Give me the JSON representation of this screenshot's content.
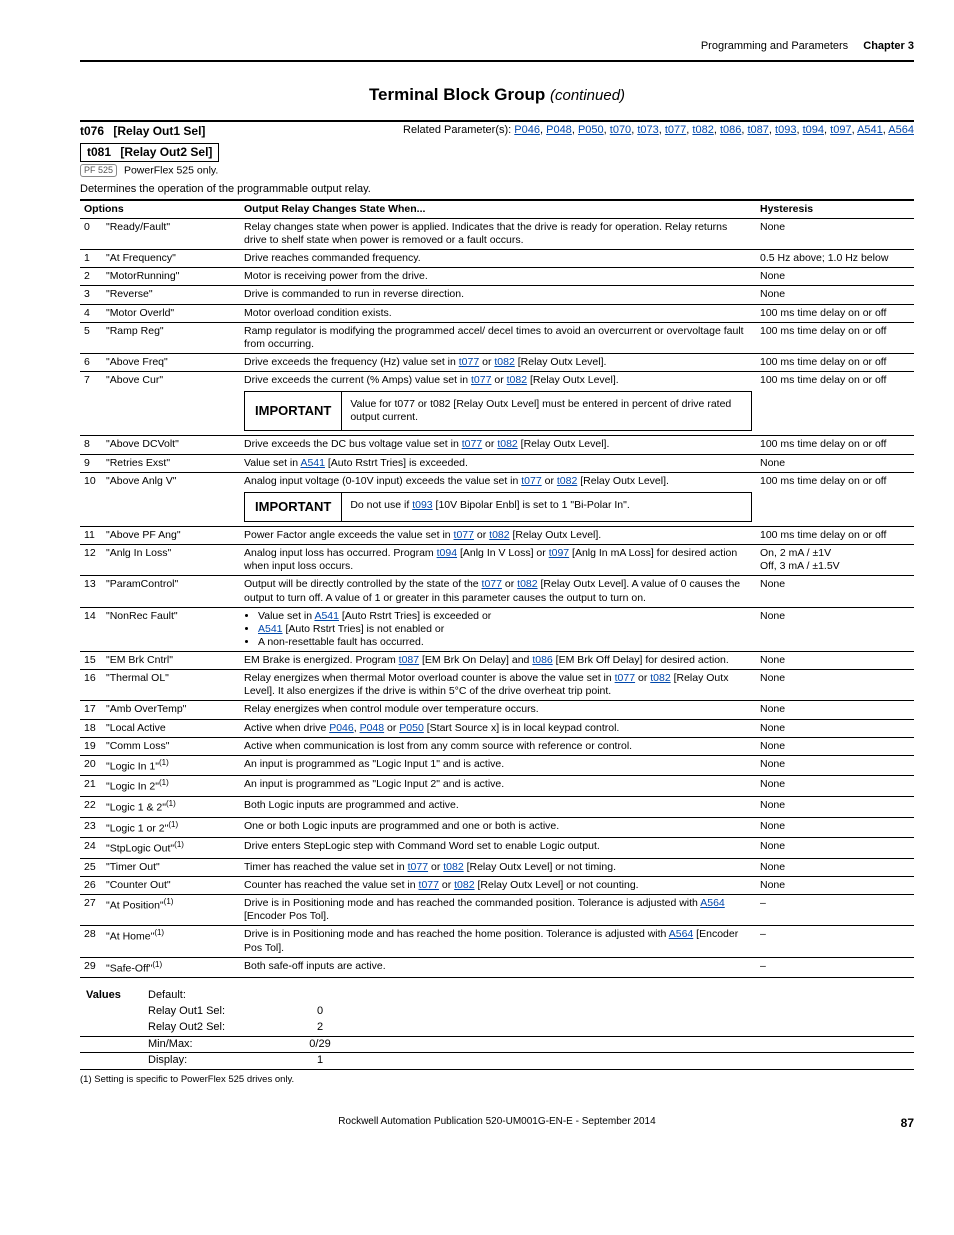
{
  "header": {
    "section": "Programming and Parameters",
    "chapter": "Chapter 3"
  },
  "title": {
    "main": "Terminal Block Group",
    "cont": "(continued)"
  },
  "params": {
    "p1": {
      "num": "t076",
      "name": "[Relay Out1 Sel]"
    },
    "p2": {
      "num": "t081",
      "name": "[Relay Out2 Sel]"
    },
    "related_label": "Related Parameter(s): ",
    "related": [
      "P046",
      "P048",
      "P050",
      "t070",
      "t073",
      "t077",
      "t082",
      "t086",
      "t087",
      "t093",
      "t094",
      "t097",
      "A541",
      "A564"
    ],
    "pf525": "PF 525",
    "pf525_note": "PowerFlex 525 only.",
    "desc": "Determines the operation of the programmable output relay."
  },
  "table": {
    "headers": {
      "opt": "Options",
      "out": "Output Relay Changes State When...",
      "hys": "Hysteresis"
    },
    "important_label": "IMPORTANT",
    "imp1": "Value for t077 or t082 [Relay Outx Level] must be entered in percent of drive rated output current.",
    "imp2_pre": "Do not use if ",
    "imp2_link": "t093",
    "imp2_post": " [10V Bipolar Enbl] is set to 1 \"Bi-Polar In\".",
    "rows": [
      {
        "i": "0",
        "opt": "\"Ready/Fault\"",
        "out_html": "Relay changes state when power is applied. Indicates that the drive is ready for operation. Relay returns drive to shelf state when power is removed or a fault occurs.",
        "hys": "None"
      },
      {
        "i": "1",
        "opt": "\"At Frequency\"",
        "out_html": "Drive reaches commanded frequency.",
        "hys": "0.5 Hz above; 1.0 Hz below"
      },
      {
        "i": "2",
        "opt": "\"MotorRunning\"",
        "out_html": "Motor is receiving power from the drive.",
        "hys": "None"
      },
      {
        "i": "3",
        "opt": "\"Reverse\"",
        "out_html": "Drive is commanded to run in reverse direction.",
        "hys": "None"
      },
      {
        "i": "4",
        "opt": "\"Motor Overld\"",
        "out_html": "Motor overload condition exists.",
        "hys": "100 ms time delay on or off"
      },
      {
        "i": "5",
        "opt": "\"Ramp Reg\"",
        "out_html": "Ramp regulator is modifying the programmed accel/ decel times to avoid an overcurrent or overvoltage fault from occurring.",
        "hys": "100 ms time delay on or off"
      },
      {
        "i": "6",
        "opt": "\"Above Freq\"",
        "out_html": "Drive exceeds the frequency (Hz) value set in <a class='link'>t077</a> or <a class='link'>t082</a> [Relay Outx Level].",
        "hys": "100 ms time delay on or off"
      },
      {
        "i": "7",
        "opt": "\"Above Cur\"",
        "out_html": "Drive exceeds the current (% Amps) value set in <a class='link'>t077</a> or <a class='link'>t082</a> [Relay Outx Level].",
        "hys": "100 ms time delay on or off",
        "important": "imp1"
      },
      {
        "i": "8",
        "opt": "\"Above DCVolt\"",
        "out_html": "Drive exceeds the DC bus voltage value set in <a class='link'>t077</a> or <a class='link'>t082</a> [Relay Outx Level].",
        "hys": "100 ms time delay on or off"
      },
      {
        "i": "9",
        "opt": "\"Retries Exst\"",
        "out_html": "Value set in <a class='link'>A541</a> [Auto Rstrt Tries] is exceeded.",
        "hys": "None"
      },
      {
        "i": "10",
        "opt": "\"Above Anlg V\"",
        "out_html": "Analog input voltage (0-10V input) exceeds the value set in <a class='link'>t077</a> or <a class='link'>t082</a> [Relay Outx Level].",
        "hys": "100 ms time delay on or off",
        "important": "imp2"
      },
      {
        "i": "11",
        "opt": "\"Above PF Ang\"",
        "out_html": "Power Factor angle exceeds the value set in <a class='link'>t077</a> or <a class='link'>t082</a> [Relay Outx Level].",
        "hys": "100 ms time delay on or off"
      },
      {
        "i": "12",
        "opt": "\"Anlg In Loss\"",
        "out_html": "Analog input loss has occurred. Program <a class='link'>t094</a> [Anlg In V Loss] or <a class='link'>t097</a> [Anlg In mA Loss] for desired action when input loss occurs.",
        "hys": "On, 2 mA / ±1V<br>Off, 3 mA / ±1.5V"
      },
      {
        "i": "13",
        "opt": "\"ParamControl\"",
        "out_html": "Output will be directly controlled by the state of the <a class='link'>t077</a> or <a class='link'>t082</a> [Relay Outx Level]. A value of 0 causes the output to turn off. A value of 1 or greater in this parameter causes the output to turn on.",
        "hys": "None"
      },
      {
        "i": "14",
        "opt": "\"NonRec Fault\"",
        "out_html": "<ul class='bul'><li>Value set in <a class='link'>A541</a> [Auto Rstrt Tries] is exceeded or</li><li><a class='link'>A541</a> [Auto Rstrt Tries] is not enabled or</li><li>A non-resettable fault has occurred.</li></ul>",
        "hys": "None"
      },
      {
        "i": "15",
        "opt": "\"EM Brk Cntrl\"",
        "out_html": "EM Brake is energized. Program <a class='link'>t087</a> [EM Brk On Delay] and <a class='link'>t086</a> [EM Brk Off Delay] for desired action.",
        "hys": "None"
      },
      {
        "i": "16",
        "opt": "\"Thermal OL\"",
        "out_html": "Relay energizes when thermal Motor overload counter is above the value set in <a class='link'>t077</a> or <a class='link'>t082</a> [Relay Outx Level]. It also energizes if the drive is within 5°C of the drive overheat trip point.",
        "hys": "None"
      },
      {
        "i": "17",
        "opt": "\"Amb OverTemp\"",
        "out_html": "Relay energizes when control module over temperature occurs.",
        "hys": "None"
      },
      {
        "i": "18",
        "opt": "\"Local Active",
        "out_html": "Active when drive <a class='link'>P046</a>, <a class='link'>P048</a> or <a class='link'>P050</a> [Start Source x] is in local keypad control.",
        "hys": "None"
      },
      {
        "i": "19",
        "opt": "\"Comm Loss\"",
        "out_html": "Active when communication is lost from any comm source with reference or control.",
        "hys": "None"
      },
      {
        "i": "20",
        "opt": "\"Logic In 1\"",
        "sup": "(1)",
        "out_html": "An input is programmed as \"Logic Input 1\" and is active.",
        "hys": "None"
      },
      {
        "i": "21",
        "opt": "\"Logic In 2\"",
        "sup": "(1)",
        "out_html": "An input is programmed as \"Logic Input 2\" and is active.",
        "hys": "None"
      },
      {
        "i": "22",
        "opt": "\"Logic 1 & 2\"",
        "sup": "(1)",
        "out_html": "Both Logic inputs are programmed and active.",
        "hys": "None"
      },
      {
        "i": "23",
        "opt": "\"Logic 1 or 2\"",
        "sup": "(1)",
        "out_html": "One or both Logic inputs are programmed and one or both is active.",
        "hys": "None"
      },
      {
        "i": "24",
        "opt": "\"StpLogic Out\"",
        "sup": "(1)",
        "out_html": "Drive enters StepLogic step with Command Word set to enable Logic output.",
        "hys": "None"
      },
      {
        "i": "25",
        "opt": "\"Timer Out\"",
        "out_html": "Timer has reached the value set in <a class='link'>t077</a> or <a class='link'>t082</a> [Relay Outx Level] or not timing.",
        "hys": "None"
      },
      {
        "i": "26",
        "opt": "\"Counter Out\"",
        "out_html": "Counter has reached the value set in <a class='link'>t077</a> or <a class='link'>t082</a> [Relay Outx Level] or not counting.",
        "hys": "None"
      },
      {
        "i": "27",
        "opt": "\"At Position\"",
        "sup": "(1)",
        "out_html": "Drive is in Positioning mode and has reached the commanded position. Tolerance is adjusted with <a class='link'>A564</a> [Encoder Pos Tol].",
        "hys": "–"
      },
      {
        "i": "28",
        "opt": "\"At Home\"",
        "sup": "(1)",
        "out_html": "Drive is in Positioning mode and has reached the home position. Tolerance is adjusted with <a class='link'>A564</a> [Encoder Pos Tol].",
        "hys": "–"
      },
      {
        "i": "29",
        "opt": "\"Safe-Off\"",
        "sup": "(1)",
        "out_html": "Both safe-off inputs are active.",
        "hys": "–"
      }
    ]
  },
  "values": {
    "label": "Values",
    "default_label": "Default:",
    "r1_key": "Relay Out1 Sel:",
    "r1_val": "0",
    "r2_key": "Relay Out2 Sel:",
    "r2_val": "2",
    "minmax_key": "Min/Max:",
    "minmax_val": "0/29",
    "disp_key": "Display:",
    "disp_val": "1"
  },
  "footnote": "(1)   Setting is specific to PowerFlex 525 drives only.",
  "footer": {
    "pub": "Rockwell Automation Publication 520-UM001G-EN-E - September 2014",
    "page": "87"
  }
}
